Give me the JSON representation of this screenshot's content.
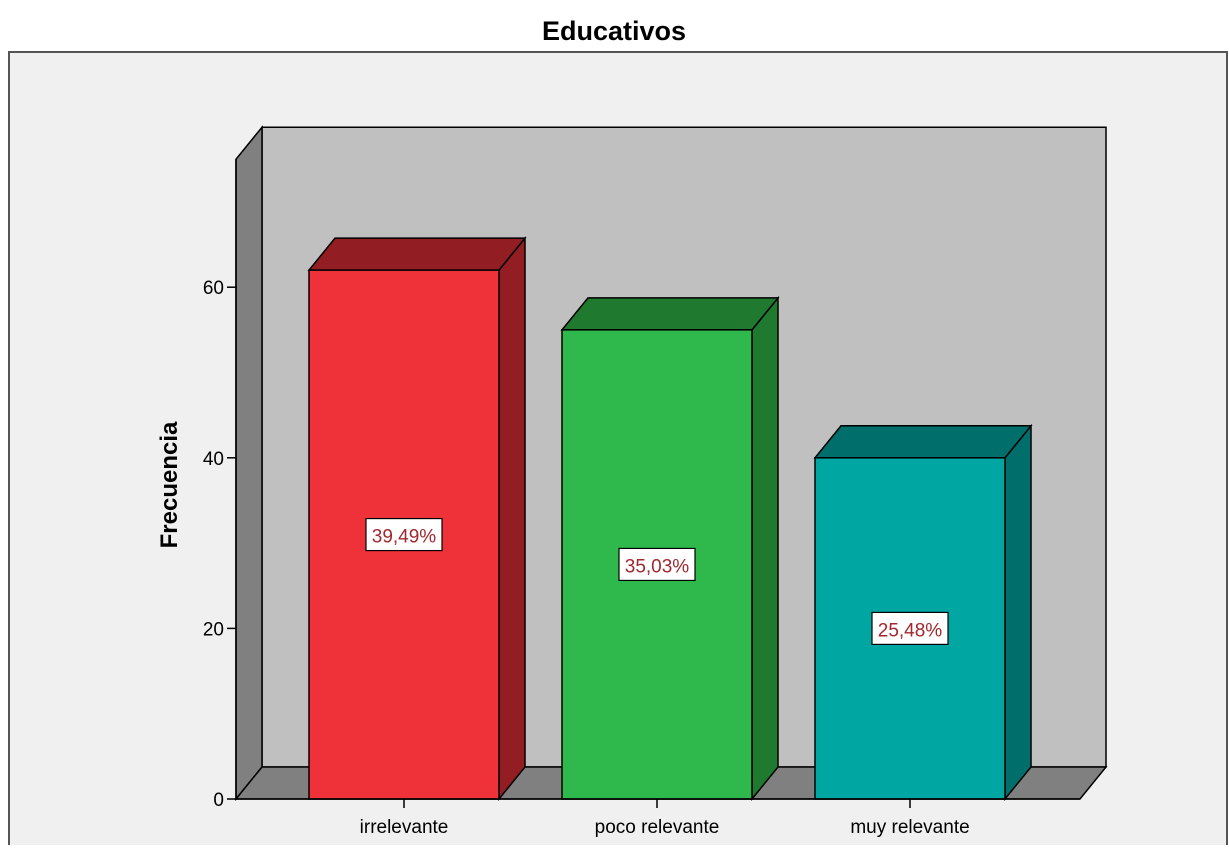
{
  "chart_data": {
    "type": "bar",
    "title": "Educativos",
    "xlabel": "",
    "ylabel": "Frecuencia",
    "categories": [
      "irrelevante",
      "poco relevante",
      "muy relevante"
    ],
    "values": [
      62,
      55,
      40
    ],
    "data_labels": [
      "39,49%",
      "35,03%",
      "25,48%"
    ],
    "ylim": [
      0,
      75
    ],
    "yticks": [
      0,
      20,
      40,
      60
    ],
    "grid": false,
    "legend": "none",
    "bar_3d": true
  },
  "colors": {
    "bar_faces": [
      "#ef323a",
      "#2fb84b",
      "#00a6a2"
    ],
    "bar_tops": [
      "#921d22",
      "#1f7a30",
      "#006e6b"
    ],
    "bar_sides": [
      "#921d22",
      "#1f7a30",
      "#006e6b"
    ],
    "back_wall": "#c0c0c0",
    "side_wall": "#808080",
    "floor": "#808080",
    "plot_background": "#f0f0f0",
    "label_text": "#a0282e"
  }
}
